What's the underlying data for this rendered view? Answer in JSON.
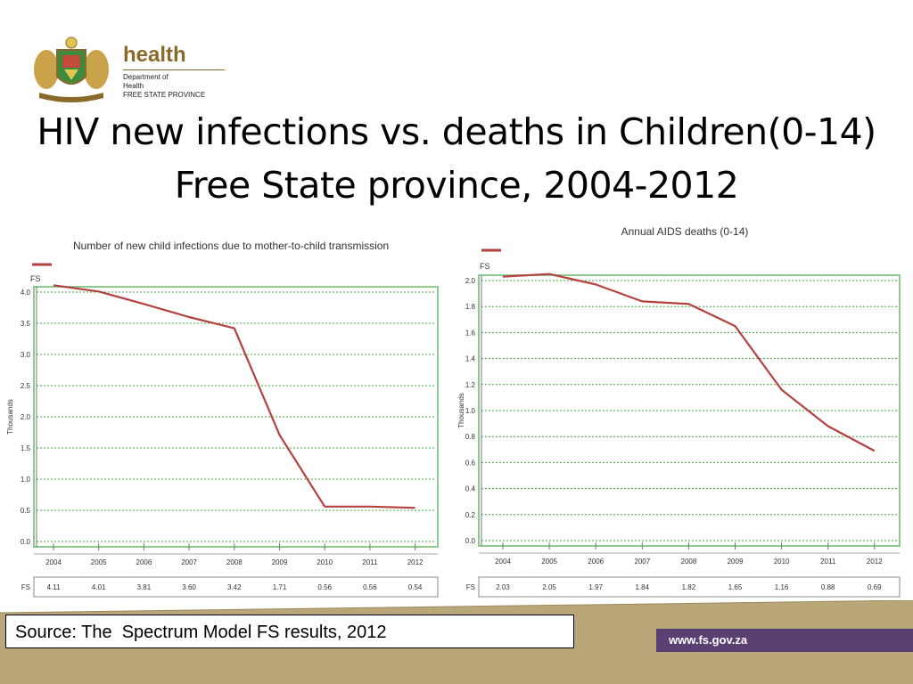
{
  "logo": {
    "brand": "health",
    "lines": [
      "Department of",
      "Health",
      "FREE STATE PROVINCE"
    ]
  },
  "title": {
    "line1": "HIV new infections vs. deaths in Children(0-14)",
    "line2": "Free State province, 2004-2012"
  },
  "source": "Source: The  Spectrum Model FS results, 2012",
  "url": "www.fs.gov.za",
  "colors": {
    "series_line": "#b5413f",
    "grid": "#3aa63a",
    "frame": "#8ec98e",
    "footer_band": "#b9a77a",
    "url_bar": "#5a3f73"
  },
  "chart_data": [
    {
      "type": "line",
      "title": "Number of new child infections due to mother-to-child transmission",
      "ylabel": "Thousands",
      "ylim": [
        0,
        4.0
      ],
      "yticks": [
        "0.0",
        "0.5",
        "1.0",
        "1.5",
        "2.0",
        "2.5",
        "3.0",
        "3.5",
        "4.0"
      ],
      "categories": [
        "2004",
        "2005",
        "2006",
        "2007",
        "2008",
        "2009",
        "2010",
        "2011",
        "2012"
      ],
      "series": [
        {
          "name": "FS",
          "values": [
            4.11,
            4.01,
            3.81,
            3.6,
            3.42,
            1.71,
            0.56,
            0.56,
            0.54
          ]
        }
      ],
      "table_labels": [
        "4.11",
        "4.01",
        "3.81",
        "3.60",
        "3.42",
        "1.71",
        "0.56",
        "0.56",
        "0.54"
      ],
      "grid": true,
      "legend": "top-left"
    },
    {
      "type": "line",
      "title": "Annual AIDS deaths (0-14)",
      "ylabel": "Thousands",
      "ylim": [
        0,
        2.0
      ],
      "yticks": [
        "0.0",
        "0.2",
        "0.4",
        "0.6",
        "0.8",
        "1.0",
        "1.2",
        "1.4",
        "1.6",
        "1.8",
        "2.0"
      ],
      "categories": [
        "2004",
        "2005",
        "2006",
        "2007",
        "2008",
        "2009",
        "2010",
        "2011",
        "2012"
      ],
      "series": [
        {
          "name": "FS",
          "values": [
            2.03,
            2.05,
            1.97,
            1.84,
            1.82,
            1.65,
            1.16,
            0.88,
            0.69
          ]
        }
      ],
      "table_labels": [
        "2.03",
        "2.05",
        "1.97",
        "1.84",
        "1.82",
        "1.65",
        "1.16",
        "0.88",
        "0.69"
      ],
      "grid": true,
      "legend": "top-left"
    }
  ]
}
